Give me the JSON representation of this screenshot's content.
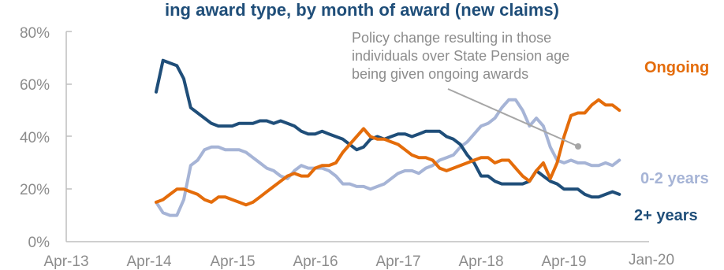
{
  "chart_data": {
    "type": "line",
    "title": "ing award type, by month of award (new claims)",
    "x_tick_labels": [
      "Apr-13",
      "Apr-14",
      "Apr-15",
      "Apr-16",
      "Apr-17",
      "Apr-18",
      "Apr-19",
      "Jan-20"
    ],
    "y_tick_labels": [
      "0%",
      "20%",
      "40%",
      "60%",
      "80%"
    ],
    "ylim": [
      0,
      80
    ],
    "y_unit": "%",
    "grid": false,
    "x_start": "2014-05",
    "series": [
      {
        "name": "Ongoing",
        "color": "#e46c0a",
        "values": [
          15,
          16,
          18,
          20,
          20,
          19,
          18,
          16,
          15,
          17,
          17,
          16,
          15,
          14,
          15,
          17,
          19,
          21,
          23,
          25,
          26,
          25,
          25,
          28,
          29,
          29,
          30,
          34,
          37,
          40,
          43,
          40,
          39,
          39,
          38,
          37,
          35,
          33,
          32,
          32,
          31,
          28,
          27,
          28,
          29,
          30,
          31,
          32,
          32,
          30,
          31,
          31,
          28,
          25,
          23,
          27,
          30,
          24,
          30,
          40,
          48,
          49,
          49,
          52,
          54,
          52,
          52,
          50
        ]
      },
      {
        "name": "0-2 years",
        "color": "#a6b4d6",
        "values": [
          15,
          11,
          10,
          10,
          16,
          29,
          31,
          35,
          36,
          36,
          35,
          35,
          35,
          34,
          32,
          30,
          28,
          27,
          25,
          24,
          27,
          29,
          28,
          28,
          28,
          27,
          25,
          22,
          22,
          21,
          21,
          20,
          21,
          22,
          24,
          26,
          27,
          27,
          26,
          28,
          29,
          31,
          32,
          33,
          36,
          38,
          41,
          44,
          45,
          47,
          51,
          54,
          54,
          50,
          44,
          47,
          44,
          36,
          31,
          30,
          31,
          30,
          30,
          29,
          29,
          30,
          29,
          31
        ]
      },
      {
        "name": "2+ years",
        "color": "#1f4e79",
        "values": [
          57,
          69,
          68,
          67,
          62,
          51,
          49,
          47,
          45,
          44,
          44,
          44,
          45,
          45,
          45,
          46,
          46,
          45,
          46,
          45,
          44,
          42,
          41,
          41,
          42,
          41,
          40,
          39,
          37,
          35,
          36,
          39,
          40,
          39,
          40,
          41,
          41,
          40,
          41,
          42,
          42,
          42,
          40,
          39,
          37,
          33,
          30,
          25,
          25,
          23,
          22,
          22,
          22,
          22,
          23,
          27,
          25,
          23,
          22,
          20,
          20,
          20,
          18,
          17,
          17,
          18,
          19,
          18
        ]
      }
    ],
    "series_labels": [
      "Ongoing",
      "0-2 years",
      "2+ years"
    ],
    "annotation": {
      "lines": [
        "Policy change resulting in those",
        "individuals over State Pension age",
        "being given ongoing awards"
      ],
      "arrow_color": "#a6a6a6"
    }
  }
}
